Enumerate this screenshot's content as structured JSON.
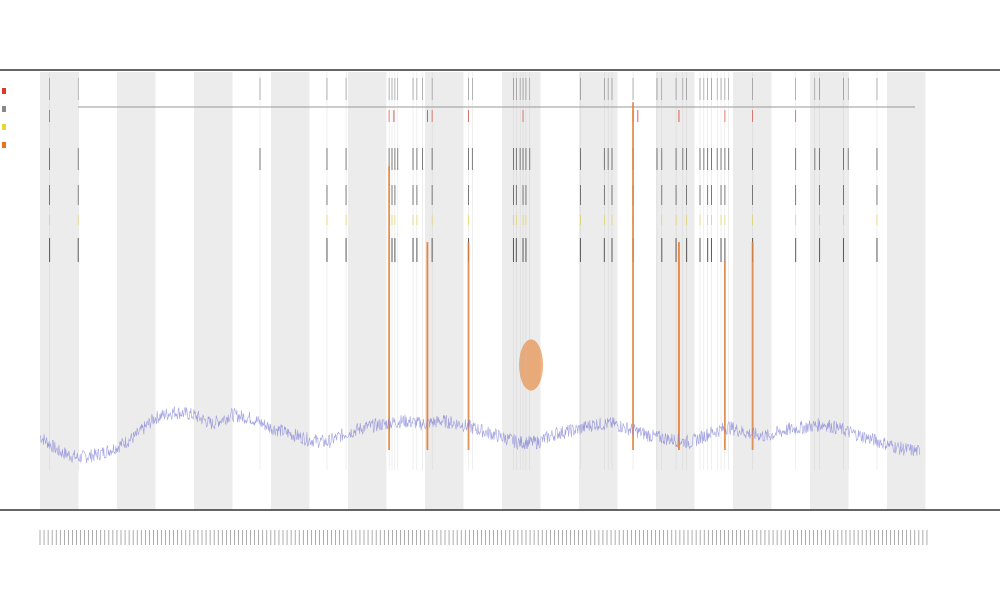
{
  "chart_data": {
    "type": "line",
    "title": "",
    "subtitle_lines": [
      "",
      ""
    ],
    "xlabel": "",
    "ylabel": "",
    "grid": false,
    "legend_placement": "top-left",
    "colors": {
      "band": "#ececec",
      "axis": "#333333",
      "coverage": "#7b7bd6",
      "orange": "#e8741e",
      "red": "#d93a2b",
      "yellow": "#e9d62f",
      "black": "#1a1a1a",
      "gray": "#888888"
    },
    "band_count": 23,
    "series": [
      {
        "color": "#d93a2b",
        "name": ""
      },
      {
        "color": "#888888",
        "name": ""
      },
      {
        "color": "#e9d62f",
        "name": ""
      },
      {
        "color": "#e8741e",
        "name": ""
      }
    ],
    "coverage_profile": [
      [
        0,
        0.22
      ],
      [
        20,
        0.12
      ],
      [
        40,
        0.08
      ],
      [
        60,
        0.1
      ],
      [
        80,
        0.15
      ],
      [
        100,
        0.22
      ],
      [
        120,
        0.34
      ],
      [
        140,
        0.38
      ],
      [
        160,
        0.36
      ],
      [
        180,
        0.3
      ],
      [
        200,
        0.36
      ],
      [
        220,
        0.34
      ],
      [
        240,
        0.28
      ],
      [
        260,
        0.24
      ],
      [
        280,
        0.2
      ],
      [
        300,
        0.18
      ],
      [
        320,
        0.24
      ],
      [
        340,
        0.28
      ],
      [
        360,
        0.3
      ],
      [
        380,
        0.32
      ],
      [
        400,
        0.3
      ],
      [
        420,
        0.32
      ],
      [
        440,
        0.3
      ],
      [
        460,
        0.26
      ],
      [
        480,
        0.22
      ],
      [
        500,
        0.18
      ],
      [
        520,
        0.18
      ],
      [
        540,
        0.24
      ],
      [
        560,
        0.26
      ],
      [
        580,
        0.3
      ],
      [
        600,
        0.3
      ],
      [
        620,
        0.26
      ],
      [
        640,
        0.22
      ],
      [
        660,
        0.2
      ],
      [
        680,
        0.18
      ],
      [
        700,
        0.24
      ],
      [
        720,
        0.28
      ],
      [
        740,
        0.24
      ],
      [
        760,
        0.22
      ],
      [
        780,
        0.26
      ],
      [
        800,
        0.28
      ],
      [
        820,
        0.3
      ],
      [
        840,
        0.26
      ],
      [
        860,
        0.22
      ],
      [
        880,
        0.18
      ],
      [
        900,
        0.14
      ],
      [
        920,
        0.12
      ]
    ],
    "marker_positions": [
      10,
      40,
      230,
      300,
      320,
      365,
      368,
      371,
      374,
      390,
      394,
      400,
      410,
      448,
      452,
      495,
      498,
      502,
      505,
      508,
      512,
      565,
      590,
      594,
      598,
      620,
      645,
      650,
      665,
      672,
      676,
      690,
      694,
      698,
      702,
      708,
      712,
      716,
      720,
      745,
      790,
      810,
      815,
      840,
      845,
      875
    ],
    "orange_spikes": [
      {
        "pos": 365,
        "height": 0.75
      },
      {
        "pos": 405,
        "height": 0.55
      },
      {
        "pos": 448,
        "height": 0.55
      },
      {
        "pos": 620,
        "height": 0.92
      },
      {
        "pos": 668,
        "height": 0.55
      },
      {
        "pos": 716,
        "height": 0.5
      },
      {
        "pos": 745,
        "height": 0.55
      }
    ],
    "orange_blob": {
      "pos": 505,
      "height": 0.32
    },
    "red_line_positions": [
      10,
      365,
      370,
      405,
      410,
      448,
      505,
      620,
      625,
      668,
      716,
      745,
      790
    ],
    "bracket_label_positions": [
      230
    ]
  }
}
